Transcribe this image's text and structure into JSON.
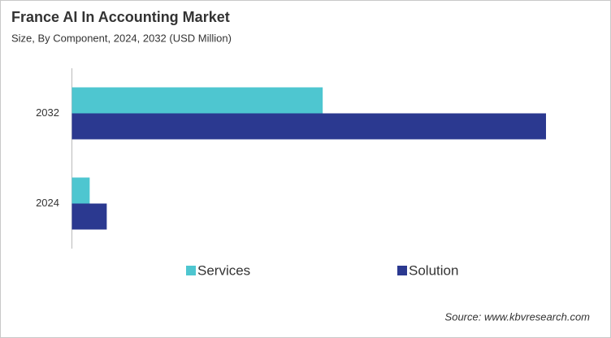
{
  "chart_data": {
    "type": "hbar",
    "title": "France AI In Accounting Market",
    "subtitle": "Size, By Component, 2024, 2032 (USD Million)",
    "source": "Source: www.kbvresearch.com",
    "categories": [
      "2024",
      "2032"
    ],
    "series": [
      {
        "name": "Services",
        "color": "#4ec6d0",
        "values": [
          7.5,
          105.8
        ]
      },
      {
        "name": "Solution",
        "color": "#2b3990",
        "values": [
          14.7,
          200
        ]
      }
    ],
    "xlim": [
      0,
      200
    ]
  }
}
